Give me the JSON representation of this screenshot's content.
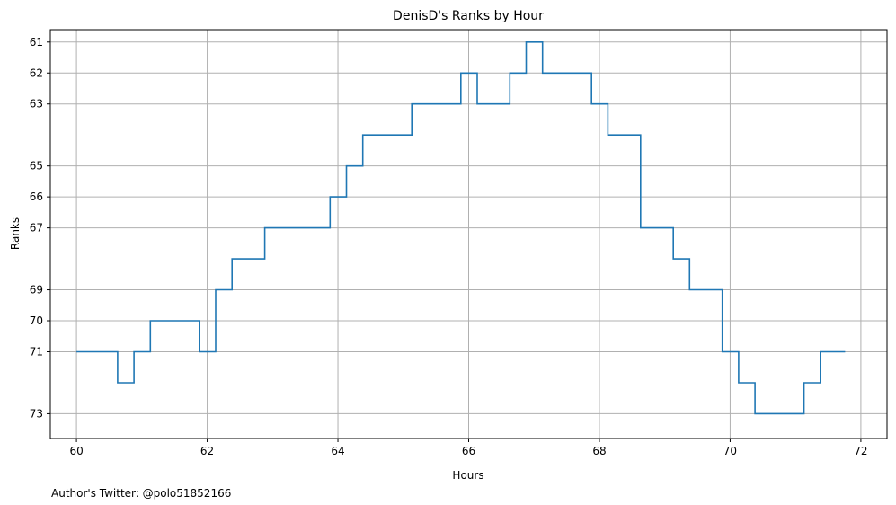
{
  "chart_data": {
    "type": "line",
    "drawstyle": "steps-post",
    "title": "DenisD's Ranks by Hour",
    "xlabel": "Hours",
    "ylabel": "Ranks",
    "xlim": [
      59.6,
      72.4
    ],
    "ylim": [
      73.8,
      60.6
    ],
    "y_inverted": true,
    "grid": true,
    "x_ticks": [
      60,
      62,
      64,
      66,
      68,
      70,
      72
    ],
    "x_tick_labels": [
      "60",
      "62",
      "64",
      "66",
      "68",
      "70",
      "72"
    ],
    "y_ticks": [
      61,
      62,
      63,
      65,
      66,
      67,
      69,
      70,
      71,
      73
    ],
    "y_tick_labels": [
      "61",
      "62",
      "63",
      "65",
      "66",
      "67",
      "69",
      "70",
      "71",
      "73"
    ],
    "color": "#1f77b4",
    "points": [
      [
        60.0,
        71
      ],
      [
        60.63,
        72
      ],
      [
        60.88,
        71
      ],
      [
        61.13,
        70
      ],
      [
        61.88,
        71
      ],
      [
        62.13,
        69
      ],
      [
        62.38,
        68
      ],
      [
        62.88,
        67
      ],
      [
        63.88,
        66
      ],
      [
        64.13,
        65
      ],
      [
        64.38,
        64
      ],
      [
        65.13,
        63
      ],
      [
        65.88,
        62
      ],
      [
        66.13,
        63
      ],
      [
        66.63,
        62
      ],
      [
        66.88,
        61
      ],
      [
        67.13,
        62
      ],
      [
        67.88,
        63
      ],
      [
        68.13,
        64
      ],
      [
        68.63,
        67
      ],
      [
        69.13,
        68
      ],
      [
        69.38,
        69
      ],
      [
        69.88,
        71
      ],
      [
        70.13,
        72
      ],
      [
        70.38,
        73
      ],
      [
        71.13,
        72
      ],
      [
        71.38,
        71
      ],
      [
        71.76,
        71
      ]
    ]
  },
  "footnote": "Author's Twitter: @polo51852166"
}
